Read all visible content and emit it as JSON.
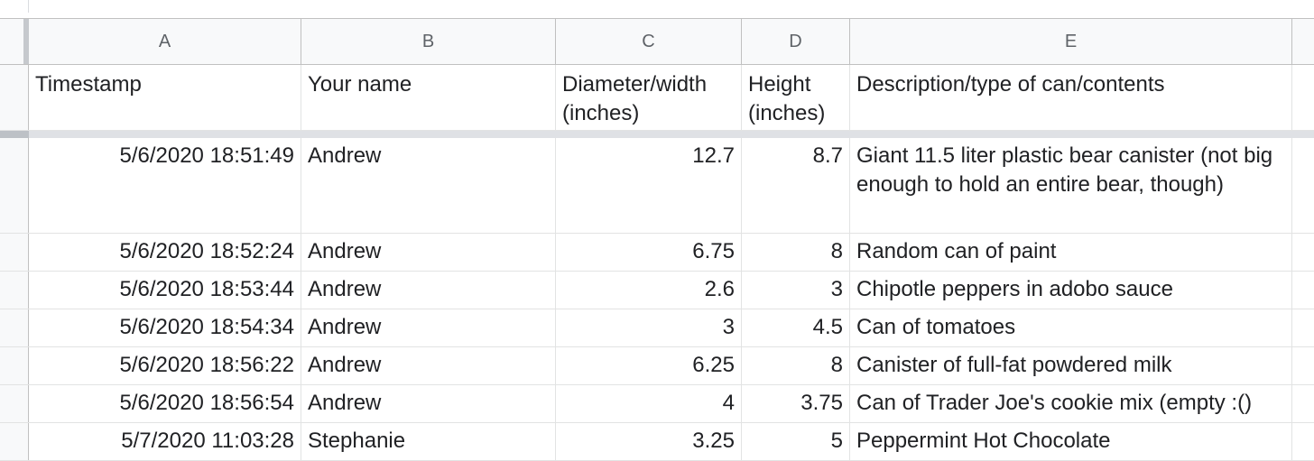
{
  "columns": [
    "A",
    "B",
    "C",
    "D",
    "E"
  ],
  "header_row": {
    "timestamp": "Timestamp",
    "name": "Your name",
    "diameter": "Diameter/width (inches)",
    "height": "Height (inches)",
    "description": "Description/type of can/contents"
  },
  "rows": [
    {
      "timestamp": "5/6/2020 18:51:49",
      "name": "Andrew",
      "diameter": "12.7",
      "height": "8.7",
      "description": "Giant 11.5 liter plastic bear canister (not big enough to hold an entire bear, though)"
    },
    {
      "timestamp": "5/6/2020 18:52:24",
      "name": "Andrew",
      "diameter": "6.75",
      "height": "8",
      "description": "Random can of paint"
    },
    {
      "timestamp": "5/6/2020 18:53:44",
      "name": "Andrew",
      "diameter": "2.6",
      "height": "3",
      "description": "Chipotle peppers in adobo sauce"
    },
    {
      "timestamp": "5/6/2020 18:54:34",
      "name": "Andrew",
      "diameter": "3",
      "height": "4.5",
      "description": "Can of tomatoes"
    },
    {
      "timestamp": "5/6/2020 18:56:22",
      "name": "Andrew",
      "diameter": "6.25",
      "height": "8",
      "description": "Canister of full-fat powdered milk"
    },
    {
      "timestamp": "5/6/2020 18:56:54",
      "name": "Andrew",
      "diameter": "4",
      "height": "3.75",
      "description": "Can of Trader Joe's cookie mix (empty :()"
    },
    {
      "timestamp": "5/7/2020 11:03:28",
      "name": "Stephanie",
      "diameter": "3.25",
      "height": "5",
      "description": "Peppermint Hot Chocolate"
    }
  ]
}
